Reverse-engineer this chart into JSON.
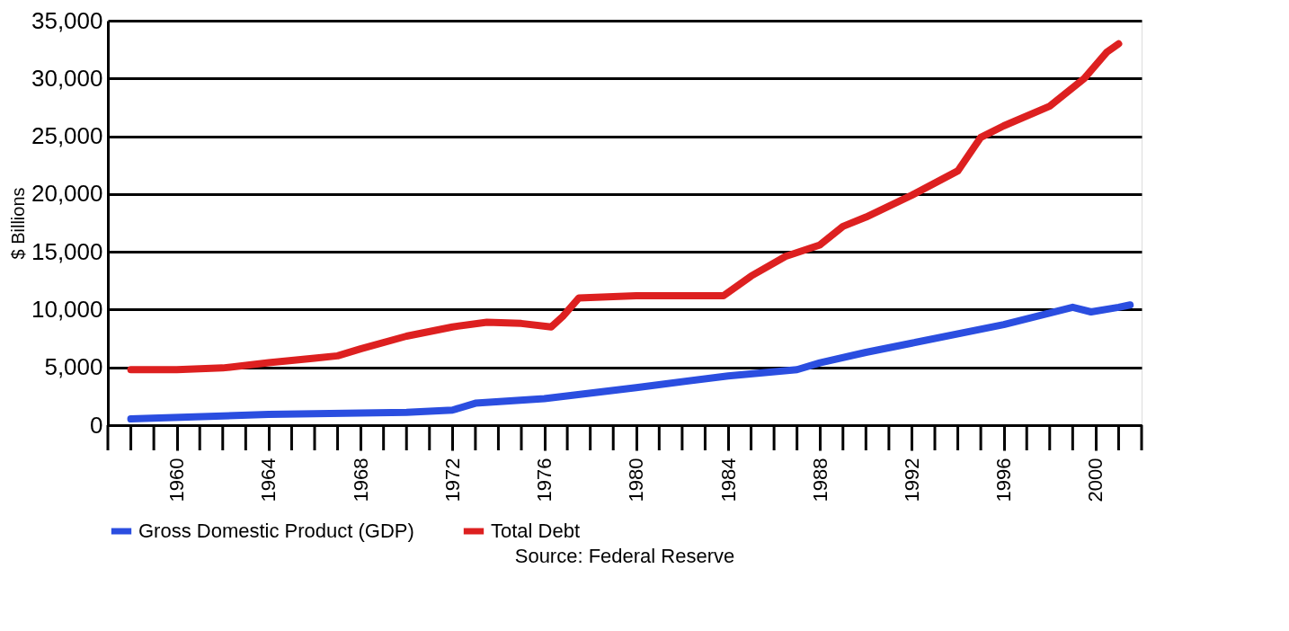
{
  "chart_data": {
    "type": "line",
    "ylabel": "$ Billions",
    "annotations": [
      "Source: Federal Reserve"
    ],
    "xlim": [
      1957,
      2002
    ],
    "xticks": [
      1960,
      1964,
      1968,
      1972,
      1976,
      1980,
      1984,
      1988,
      1992,
      1996,
      2000
    ],
    "ylim": [
      0,
      35000
    ],
    "yticks": [
      0,
      {
        "value": 5000,
        "label": "5,000"
      },
      {
        "value": 10000,
        "label": "10,000"
      },
      {
        "value": 15000,
        "label": "15,000"
      },
      {
        "value": 20000,
        "label": "20,000"
      },
      {
        "value": 25000,
        "label": "25,000"
      },
      {
        "value": 30000,
        "label": "30,000"
      },
      {
        "value": 35000,
        "label": "35,000"
      }
    ],
    "grid": "y",
    "legend": "bottom",
    "line_style": "solid",
    "marker": "none",
    "series": [
      {
        "name": "Gross Domestic Product (GDP)",
        "color": "#2b4ee0",
        "x": [
          1958,
          1964,
          1970,
          1972,
          1973,
          1976,
          1980,
          1984,
          1987,
          1988,
          1990,
          1992,
          1996,
          1999,
          1999.8,
          2001,
          2001.5
        ],
        "values": [
          540,
          930,
          1100,
          1300,
          1900,
          2300,
          3250,
          4260,
          4800,
          5400,
          6300,
          7100,
          8700,
          10200,
          9800,
          10200,
          10400
        ]
      },
      {
        "name": "Total Debt",
        "color": "#dd2020",
        "x": [
          1958,
          1960,
          1962,
          1964,
          1966,
          1967,
          1968,
          1970,
          1972,
          1973.5,
          1975,
          1976.3,
          1976.8,
          1977.5,
          1980,
          1983.8,
          1985,
          1986.5,
          1988,
          1989,
          1990,
          1992,
          1994,
          1995,
          1996,
          1998,
          1999.5,
          2000.5,
          2001
        ],
        "values": [
          4800,
          4800,
          4950,
          5400,
          5800,
          6000,
          6600,
          7700,
          8500,
          8900,
          8800,
          8500,
          9400,
          11000,
          11200,
          11200,
          12900,
          14600,
          15600,
          17200,
          18000,
          19900,
          22000,
          24900,
          25900,
          27600,
          30000,
          32300,
          33000
        ]
      }
    ]
  }
}
